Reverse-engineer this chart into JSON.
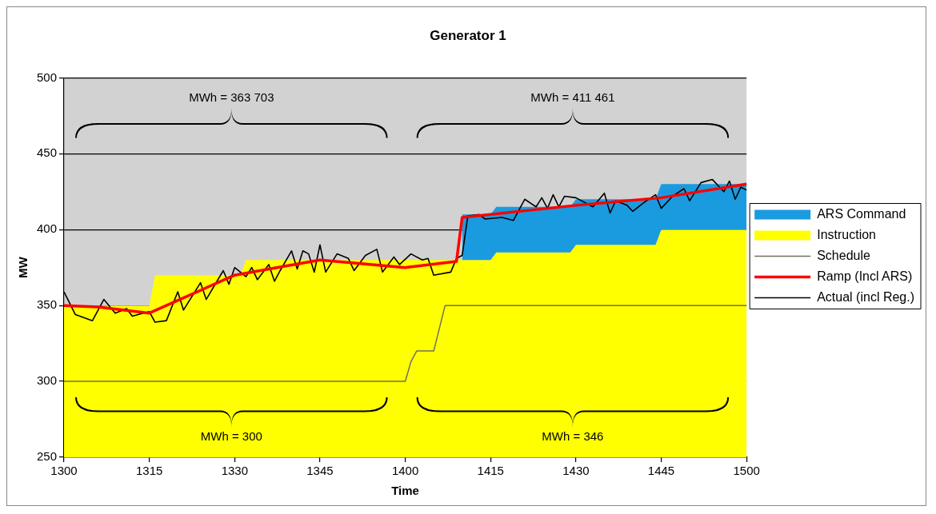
{
  "chart_data": {
    "type": "line",
    "title": "Generator 1",
    "xlabel": "Time",
    "ylabel": "MW",
    "categories": [
      "1300",
      null,
      null,
      null,
      null,
      null,
      null,
      null,
      null,
      null,
      null,
      null,
      null,
      null,
      null,
      "1315",
      null,
      null,
      null,
      null,
      null,
      null,
      null,
      null,
      null,
      null,
      null,
      null,
      null,
      null,
      "1330",
      null,
      null,
      null,
      null,
      null,
      null,
      null,
      null,
      null,
      null,
      null,
      null,
      null,
      null,
      "1345",
      null,
      null,
      null,
      null,
      null,
      null,
      null,
      null,
      null,
      null,
      null,
      null,
      null,
      null,
      "1400",
      null,
      null,
      null,
      null,
      null,
      null,
      null,
      null,
      null,
      null,
      null,
      null,
      null,
      null,
      "1415",
      null,
      null,
      null,
      null,
      null,
      null,
      null,
      null,
      null,
      null,
      null,
      null,
      null,
      null,
      "1430",
      null,
      null,
      null,
      null,
      null,
      null,
      null,
      null,
      null,
      null,
      null,
      null,
      null,
      null,
      "1445",
      null,
      null,
      null,
      null,
      null,
      null,
      null,
      null,
      null,
      null,
      null,
      null,
      null,
      null,
      "1500"
    ],
    "series": [
      {
        "name": "Instruction",
        "type": "area",
        "color": "#ffff00",
        "values": [
          350,
          350,
          350,
          350,
          350,
          350,
          350,
          350,
          350,
          350,
          350,
          350,
          350,
          350,
          350,
          350,
          370,
          370,
          370,
          370,
          370,
          370,
          370,
          370,
          370,
          370,
          370,
          370,
          370,
          370,
          370,
          370,
          380,
          380,
          380,
          380,
          380,
          380,
          380,
          380,
          380,
          380,
          380,
          380,
          380,
          380,
          380,
          380,
          380,
          380,
          380,
          380,
          380,
          380,
          380,
          380,
          380,
          380,
          380,
          380,
          380,
          380,
          380,
          380,
          380,
          380,
          380,
          380,
          380,
          380,
          380,
          380,
          380,
          380,
          380,
          380,
          385,
          385,
          385,
          385,
          385,
          385,
          385,
          385,
          385,
          385,
          385,
          385,
          385,
          385,
          390,
          390,
          390,
          390,
          390,
          390,
          390,
          390,
          390,
          390,
          390,
          390,
          390,
          390,
          390,
          400,
          400,
          400,
          400,
          400,
          400,
          400,
          400,
          400,
          400,
          400,
          400,
          400,
          400,
          400,
          400
        ]
      },
      {
        "name": "ARS Command",
        "type": "area",
        "color": "#1a9be0",
        "values": [
          null,
          null,
          null,
          null,
          null,
          null,
          null,
          null,
          null,
          null,
          null,
          null,
          null,
          null,
          null,
          null,
          null,
          null,
          null,
          null,
          null,
          null,
          null,
          null,
          null,
          null,
          null,
          null,
          null,
          null,
          null,
          null,
          null,
          null,
          null,
          null,
          null,
          null,
          null,
          null,
          null,
          null,
          null,
          null,
          null,
          null,
          null,
          null,
          null,
          null,
          null,
          null,
          null,
          null,
          null,
          null,
          null,
          null,
          null,
          null,
          null,
          null,
          null,
          null,
          null,
          null,
          null,
          null,
          null,
          null,
          410,
          410,
          410,
          410,
          410,
          410,
          415,
          415,
          415,
          415,
          415,
          415,
          415,
          415,
          415,
          415,
          415,
          415,
          415,
          415,
          420,
          420,
          420,
          420,
          420,
          420,
          420,
          420,
          420,
          420,
          420,
          420,
          420,
          420,
          420,
          430,
          430,
          430,
          430,
          430,
          430,
          430,
          430,
          430,
          430,
          430,
          430,
          430,
          430,
          430,
          430
        ]
      },
      {
        "name": "Schedule",
        "type": "line",
        "color": "#707060",
        "values": [
          300,
          300,
          300,
          300,
          300,
          300,
          300,
          300,
          300,
          300,
          300,
          300,
          300,
          300,
          300,
          300,
          300,
          300,
          300,
          300,
          300,
          300,
          300,
          300,
          300,
          300,
          300,
          300,
          300,
          300,
          300,
          300,
          300,
          300,
          300,
          300,
          300,
          300,
          300,
          300,
          300,
          300,
          300,
          300,
          300,
          300,
          300,
          300,
          300,
          300,
          300,
          300,
          300,
          300,
          300,
          300,
          300,
          300,
          300,
          300,
          300,
          313,
          320,
          320,
          320,
          320,
          335,
          350,
          350,
          350,
          350,
          350,
          350,
          350,
          350,
          350,
          350,
          350,
          350,
          350,
          350,
          350,
          350,
          350,
          350,
          350,
          350,
          350,
          350,
          350,
          350,
          350,
          350,
          350,
          350,
          350,
          350,
          350,
          350,
          350,
          350,
          350,
          350,
          350,
          350,
          350,
          350,
          350,
          350,
          350,
          350,
          350,
          350,
          350,
          350,
          350,
          350,
          350,
          350,
          350,
          350
        ]
      },
      {
        "name": "Ramp (Incl ARS)",
        "color": "#ff0000",
        "values": [
          350,
          null,
          null,
          null,
          null,
          null,
          349,
          null,
          null,
          null,
          null,
          null,
          null,
          null,
          null,
          345,
          null,
          null,
          null,
          null,
          null,
          355,
          null,
          null,
          null,
          null,
          null,
          null,
          null,
          null,
          370,
          null,
          null,
          null,
          null,
          null,
          null,
          null,
          null,
          376,
          null,
          null,
          null,
          null,
          null,
          380,
          null,
          null,
          null,
          null,
          null,
          378,
          null,
          null,
          null,
          null,
          null,
          null,
          null,
          null,
          375,
          null,
          null,
          null,
          null,
          null,
          null,
          null,
          null,
          379,
          408,
          null,
          null,
          null,
          null,
          null,
          null,
          null,
          null,
          null,
          null,
          null,
          null,
          null,
          null,
          null,
          null,
          null,
          null,
          null,
          416,
          null,
          null,
          null,
          null,
          null,
          null,
          null,
          null,
          null,
          null,
          null,
          null,
          null,
          null,
          421,
          null,
          null,
          null,
          null,
          null,
          null,
          null,
          null,
          null,
          null,
          null,
          null,
          null,
          null,
          430
        ]
      },
      {
        "name": "Actual (incl Reg.)",
        "color": "#000000",
        "values": [
          359,
          null,
          344,
          null,
          null,
          340,
          null,
          354,
          null,
          345,
          null,
          348,
          343,
          null,
          null,
          346,
          339,
          null,
          340,
          null,
          359,
          347,
          null,
          null,
          365,
          354,
          null,
          null,
          373,
          364,
          375,
          null,
          369,
          375,
          367,
          null,
          377,
          366,
          373,
          null,
          386,
          374,
          386,
          384,
          372,
          390,
          372,
          null,
          384,
          null,
          381,
          373,
          null,
          383,
          null,
          387,
          372,
          null,
          382,
          377,
          null,
          384,
          null,
          380,
          381,
          370,
          null,
          null,
          372,
          381,
          383,
          409,
          null,
          410,
          407,
          null,
          null,
          408,
          null,
          406,
          null,
          420,
          null,
          415,
          421,
          414,
          423,
          415,
          422,
          null,
          421,
          null,
          null,
          415,
          null,
          424,
          411,
          419,
          null,
          416,
          412,
          null,
          418,
          null,
          423,
          414,
          null,
          422,
          null,
          427,
          419,
          null,
          431,
          null,
          433,
          null,
          425,
          432,
          420,
          428,
          426
        ]
      }
    ],
    "ylim": [
      250,
      500
    ],
    "yticks": [
      250,
      300,
      350,
      400,
      450,
      500
    ],
    "grid": "y",
    "legend": "right",
    "marker": "none",
    "annotations": [
      "MWh = 363 703",
      "MWh = 411 461",
      "MWh = 300",
      "MWh = 346"
    ]
  }
}
